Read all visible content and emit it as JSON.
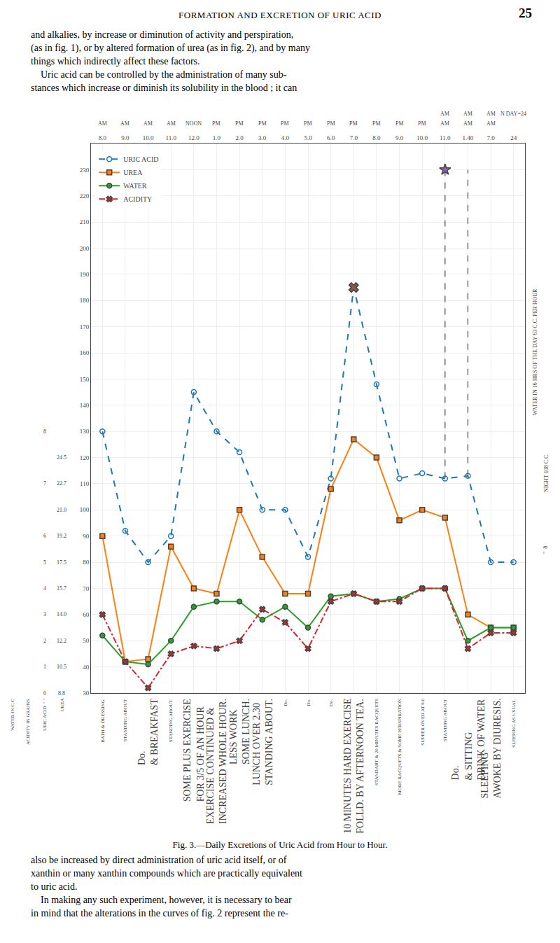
{
  "page": {
    "header": "FORMATION AND EXCRETION OF URIC ACID",
    "page_number": "25",
    "paragraphs_top": [
      "and alkalies, by increase or diminution of activity and perspiration,",
      "(as in fig. 1), or by altered formation of urea (as in fig. 2), and by many",
      "things which indirectly affect these factors.",
      "    Uric acid can be controlled by the administration of many sub-",
      "stances which increase or diminish its solubility in the blood ; it can"
    ],
    "paragraphs_bottom": [
      "also be increased by direct administration of uric acid itself, or of",
      "xanthin or many xanthin compounds which are practically equivalent",
      "to uric acid.",
      "    In making any such experiment, however, it is necessary to bear",
      "in mind that the alterations in the curves of fig. 2 represent the re-"
    ]
  },
  "chart_data": {
    "type": "line",
    "title": "Fig. 3.—Daily Excretions of Uric Acid from Hour to Hour.",
    "categories": [
      "8.0",
      "9.0",
      "10.0",
      "11.0",
      "12.0",
      "1.0",
      "2.0",
      "3.0",
      "4.0",
      "5.0",
      "6.0",
      "7.0",
      "8.0",
      "9.0",
      "10.0",
      "11.0",
      "1.40",
      "7.0",
      "24"
    ],
    "periods": [
      "AM",
      "AM",
      "AM",
      "AM",
      "NOON",
      "PM",
      "PM",
      "PM",
      "PM",
      "PM",
      "PM",
      "PM",
      "PM",
      "PM",
      "PM",
      "AM",
      "AM",
      "AM",
      null
    ],
    "top_labels": [
      null,
      null,
      null,
      null,
      null,
      null,
      null,
      null,
      null,
      null,
      null,
      null,
      null,
      null,
      null,
      "AM",
      "AM",
      "AM",
      "N DAY=24"
    ],
    "series": [
      {
        "name": "URIC ACID",
        "marker": "circle-open",
        "line_style": "dash",
        "values": [
          130,
          92,
          80,
          90,
          145,
          130,
          122,
          100,
          100,
          82,
          112,
          185,
          148,
          112,
          114,
          112,
          113,
          80,
          80
        ]
      },
      {
        "name": "UREA",
        "marker": "square",
        "line_style": "solid",
        "values": [
          90,
          42,
          43,
          86,
          70,
          68,
          100,
          82,
          68,
          68,
          108,
          127,
          120,
          96,
          100,
          97,
          60,
          55,
          55
        ]
      },
      {
        "name": "WATER",
        "marker": "circle",
        "line_style": "solid",
        "values": [
          52,
          42,
          41,
          50,
          63,
          65,
          65,
          58,
          63,
          55,
          67,
          68,
          65,
          66,
          70,
          70,
          50,
          55,
          55
        ]
      },
      {
        "name": "ACIDITY",
        "marker": "x",
        "line_style": "dashdot",
        "values": [
          60,
          42,
          32,
          45,
          48,
          47,
          50,
          62,
          57,
          47,
          65,
          68,
          65,
          65,
          70,
          70,
          47,
          53,
          53
        ]
      },
      {
        "type": "scatter",
        "marker": "star",
        "values": [
          null,
          null,
          null,
          null,
          null,
          null,
          null,
          null,
          null,
          null,
          null,
          null,
          null,
          null,
          null,
          230,
          null,
          null,
          null
        ]
      },
      {
        "type": "scatter",
        "marker": "x",
        "values": [
          null,
          null,
          null,
          null,
          null,
          null,
          null,
          null,
          null,
          null,
          null,
          185,
          null,
          null,
          null,
          null,
          null,
          null,
          null
        ]
      }
    ],
    "vertical_lines": [
      {
        "position": 15,
        "from": 112,
        "to": 230,
        "line_style": "dash"
      },
      {
        "position": 16,
        "from": 113,
        "to": 230,
        "line_style": "dash"
      }
    ],
    "ylim": [
      30,
      240
    ],
    "yticks": [
      30,
      40,
      50,
      60,
      70,
      80,
      90,
      100,
      110,
      120,
      130,
      140,
      150,
      160,
      170,
      180,
      190,
      200,
      210,
      220,
      230
    ],
    "grid": true,
    "legend": "upper left",
    "acidity_scale": [
      {
        "value": 30,
        "label": "0"
      },
      {
        "value": 40,
        "label": "1"
      },
      {
        "value": 50,
        "label": "2"
      },
      {
        "value": 60,
        "label": "3"
      },
      {
        "value": 70,
        "label": "4"
      },
      {
        "value": 80,
        "label": "5"
      },
      {
        "value": 90,
        "label": "6"
      },
      {
        "value": 110,
        "label": "7"
      },
      {
        "value": 130,
        "label": "8"
      }
    ],
    "urea_scale": [
      {
        "value": 30,
        "label": "8.8"
      },
      {
        "value": 40,
        "label": "10.5"
      },
      {
        "value": 50,
        "label": "12.2"
      },
      {
        "value": 60,
        "label": "14.0"
      },
      {
        "value": 70,
        "label": "15.7"
      },
      {
        "value": 80,
        "label": "17.5"
      },
      {
        "value": 90,
        "label": "19.2"
      },
      {
        "value": 100,
        "label": "21.0"
      },
      {
        "value": 110,
        "label": "22.7"
      },
      {
        "value": 120,
        "label": "24.5"
      }
    ],
    "activity_labels": [
      "BATH & DRESSING.",
      "STANDING ABOUT",
      "Do.\n& BREAKFAST",
      "STANDING ABOUT.",
      "SOME PLUS EXERCISE\nFOR 3/5 OF AN HOUR",
      "EXERCISE CONTINUED &\nINCREASED WHOLE HOUR.",
      "LESS WORK\nSOME LUNCH.",
      "LUNCH OVER 2.30\nSTANDING ABOUT.",
      "Do.",
      "Do.",
      "Do.",
      "10 MINUTES HARD EXERCISE\nFOLLD. BY AFTERNOON TEA.",
      "STANDABT & 20 MINUTES RACQUETS",
      "MORE RACQUETS & SOME PERSPIRATION",
      "SUPPER OVER AT 9.0",
      "STANDING ABOUT",
      "Do.\n& SITTING\nDRINK OF WATER",
      "SLEEPING\nAWOKE BY DIURESIS.",
      "SLEEPING AS USUAL."
    ],
    "left_col_headers": [
      "WATER IN C.C",
      "ACIDITY IN GRAINS",
      "URIC ACID  \" \"",
      "UREA"
    ],
    "right_annotations": [
      "WATER IN 16 HRS OF THE DAY 63 C.C. PER HOUR",
      "NIGHT 108 C.C.",
      "\"  8"
    ]
  }
}
